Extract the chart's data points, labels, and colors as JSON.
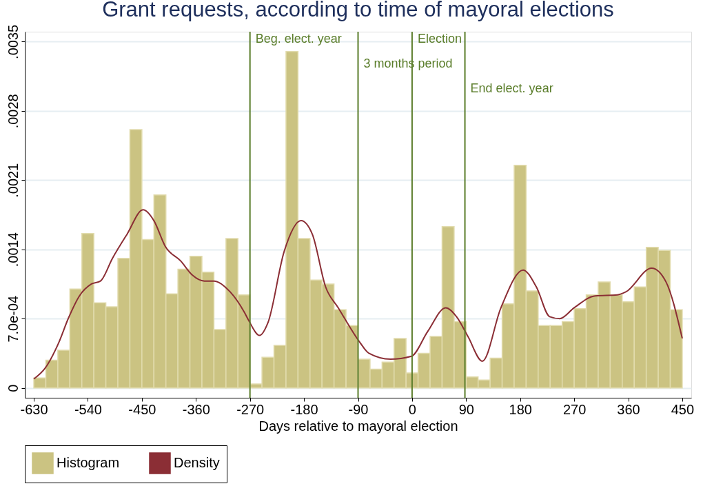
{
  "chart_data": {
    "type": "histogram",
    "title": "Grant requests, according to time of mayoral elections",
    "xlabel": "Days relative to mayoral election",
    "bins": [
      -630,
      -610,
      -590,
      -570,
      -550,
      -530,
      -510,
      -490,
      -470,
      -450,
      -430,
      -410,
      -390,
      -370,
      -350,
      -330,
      -310,
      -290,
      -270,
      -250,
      -230,
      -210,
      -190,
      -170,
      -150,
      -130,
      -110,
      -90,
      -70,
      -50,
      -30,
      -10,
      10,
      30,
      50,
      70,
      90,
      110,
      130,
      150,
      170,
      190,
      210,
      230,
      250,
      270,
      290,
      310,
      330,
      350,
      370,
      390,
      410,
      430,
      450
    ],
    "series": [
      {
        "name": "Histogram",
        "color": "#cbc382",
        "values": [
          0.0001,
          0.00028,
          0.00038,
          0.001,
          0.00156,
          0.00086,
          0.00082,
          0.00131,
          0.00261,
          0.0015,
          0.00195,
          0.00095,
          0.0012,
          0.00133,
          0.00117,
          0.00059,
          0.00151,
          0.00094,
          4e-05,
          0.00031,
          0.00043,
          0.0034,
          0.00151,
          0.00109,
          0.00105,
          0.00079,
          0.00063,
          0.00029,
          0.00019,
          0.00026,
          0.0005,
          0.00015,
          0.00035,
          0.00052,
          0.00163,
          0.00067,
          0.00011,
          8e-05,
          0.0003,
          0.00085,
          0.00225,
          0.00098,
          0.00063,
          0.00063,
          0.00067,
          0.0008,
          0.00094,
          0.00107,
          0.00094,
          0.00087,
          0.00102,
          0.00142,
          0.00139,
          0.00079
        ]
      },
      {
        "name": "Density",
        "type": "line",
        "color": "#8b2e35",
        "x": [
          -630,
          -611,
          -589,
          -572,
          -554,
          -534,
          -519,
          -499,
          -475,
          -448,
          -430,
          -411,
          -385,
          -366,
          -346,
          -330,
          -303,
          -279,
          -272,
          -254,
          -240,
          -213,
          -185,
          -166,
          -144,
          -123,
          -87,
          -72,
          -36,
          -1,
          26,
          56,
          74,
          93,
          117,
          148,
          185,
          207,
          229,
          246,
          270,
          305,
          342,
          356,
          399,
          423,
          450
        ],
        "values": [
          9e-05,
          0.0002,
          0.00045,
          0.00071,
          0.00093,
          0.00105,
          0.00108,
          0.00131,
          0.00155,
          0.0018,
          0.00169,
          0.00143,
          0.00128,
          0.00114,
          0.00108,
          0.00108,
          0.00097,
          0.00076,
          0.00068,
          0.00053,
          0.00066,
          0.00138,
          0.00169,
          0.00155,
          0.00102,
          0.00081,
          0.00046,
          0.00035,
          0.00029,
          0.00032,
          0.00057,
          0.00081,
          0.00072,
          0.00052,
          0.00027,
          0.00081,
          0.00119,
          0.00102,
          0.00072,
          0.0007,
          0.00081,
          0.00093,
          0.00094,
          0.00097,
          0.00121,
          0.00107,
          0.0005
        ]
      }
    ],
    "xlim": [
      -645,
      465
    ],
    "xticks": [
      -630,
      -540,
      -450,
      -360,
      -270,
      -180,
      -90,
      0,
      90,
      180,
      270,
      360,
      450
    ],
    "ylim": [
      -0.0001,
      0.0036
    ],
    "yticks": [
      0,
      {
        "value": 0.0007,
        "label": "7.0e-04"
      },
      {
        "value": 0.0014,
        "label": ".0014"
      },
      {
        "value": 0.0021,
        "label": ".0021"
      },
      {
        "value": 0.0028,
        "label": ".0028"
      },
      {
        "value": 0.0035,
        "label": ".0035"
      }
    ],
    "ref_lines": [
      {
        "axis": "x",
        "value": -270,
        "label": "Beg. elect. year",
        "color": "#5a7d2a"
      },
      {
        "axis": "x",
        "value": -90,
        "label": "3 months period",
        "color": "#5a7d2a"
      },
      {
        "axis": "x",
        "value": 0,
        "label": "Election",
        "color": "#5a7d2a"
      },
      {
        "axis": "x",
        "value": 88,
        "label": "End elect. year",
        "color": "#5a7d2a"
      }
    ],
    "grid": "y",
    "legend": "bottom"
  }
}
